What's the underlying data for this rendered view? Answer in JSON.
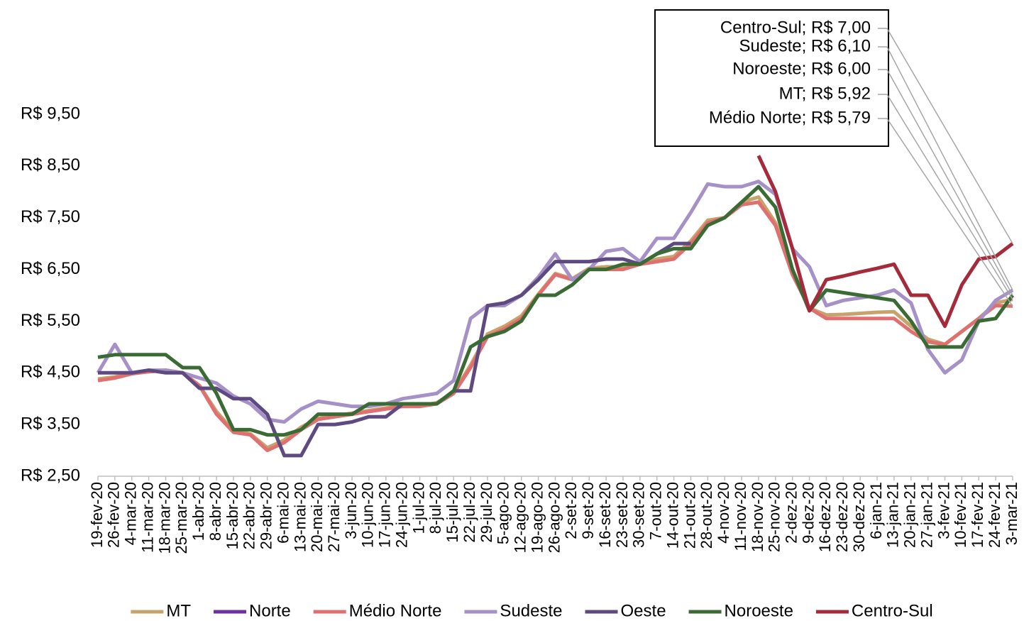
{
  "chart_data": {
    "type": "line",
    "categories": [
      "19-fev-20",
      "26-fev-20",
      "4-mar-20",
      "11-mar-20",
      "18-mar-20",
      "25-mar-20",
      "1-abr-20",
      "8-abr-20",
      "15-abr-20",
      "22-abr-20",
      "29-abr-20",
      "6-mai-20",
      "13-mai-20",
      "20-mai-20",
      "27-mai-20",
      "3-jun-20",
      "10-jun-20",
      "17-jun-20",
      "24-jun-20",
      "1-jul-20",
      "8-jul-20",
      "15-jul-20",
      "22-jul-20",
      "29-jul-20",
      "5-ago-20",
      "12-ago-20",
      "19-ago-20",
      "26-ago-20",
      "2-set-20",
      "9-set-20",
      "16-set-20",
      "23-set-20",
      "30-set-20",
      "7-out-20",
      "14-out-20",
      "21-out-20",
      "28-out-20",
      "4-nov-20",
      "11-nov-20",
      "18-nov-20",
      "25-nov-20",
      "2-dez-20",
      "9-dez-20",
      "16-dez-20",
      "23-dez-20",
      "30-dez-20",
      "6-jan-21",
      "13-jan-21",
      "20-jan-21",
      "27-jan-21",
      "3-fev-21",
      "10-fev-21",
      "17-fev-21",
      "24-fev-21",
      "3-mar-21"
    ],
    "series": [
      {
        "name": "MT",
        "color": "#c8a26b",
        "values": [
          4.38,
          4.42,
          4.5,
          4.52,
          4.55,
          4.5,
          4.25,
          3.75,
          3.38,
          3.32,
          3.05,
          3.2,
          3.45,
          3.62,
          3.67,
          3.72,
          3.77,
          3.82,
          3.86,
          3.86,
          3.92,
          4.12,
          4.65,
          5.25,
          5.4,
          5.6,
          6.02,
          6.42,
          6.32,
          6.52,
          6.55,
          6.55,
          6.6,
          6.7,
          6.75,
          7.05,
          7.45,
          7.5,
          7.8,
          7.9,
          7.4,
          6.5,
          5.75,
          5.62,
          5.63,
          5.65,
          5.67,
          5.68,
          5.4,
          5.15,
          5.05,
          5.3,
          5.55,
          5.85,
          5.92
        ]
      },
      {
        "name": "Norte",
        "color": "#7030a0",
        "values": [
          null,
          null,
          null,
          null,
          null,
          null,
          null,
          null,
          null,
          null,
          null,
          null,
          null,
          null,
          null,
          null,
          null,
          null,
          null,
          null,
          null,
          null,
          null,
          null,
          null,
          null,
          null,
          null,
          null,
          null,
          null,
          null,
          null,
          null,
          null,
          null,
          null,
          null,
          null,
          null,
          null,
          null,
          null,
          null,
          null,
          null,
          null,
          null,
          null,
          null,
          null,
          null,
          null,
          null,
          null
        ]
      },
      {
        "name": "Médio Norte",
        "color": "#e07070",
        "values": [
          4.35,
          4.4,
          4.48,
          4.52,
          4.55,
          4.5,
          4.25,
          3.7,
          3.35,
          3.3,
          3.0,
          3.15,
          3.4,
          3.6,
          3.65,
          3.7,
          3.75,
          3.8,
          3.85,
          3.85,
          3.9,
          4.1,
          4.6,
          5.2,
          5.35,
          5.55,
          6.0,
          6.4,
          6.3,
          6.5,
          6.5,
          6.5,
          6.6,
          6.65,
          6.7,
          7.0,
          7.4,
          7.5,
          7.75,
          7.8,
          7.35,
          6.4,
          5.75,
          5.55,
          5.55,
          5.55,
          5.55,
          5.55,
          5.3,
          5.1,
          5.05,
          5.3,
          5.55,
          5.8,
          5.79
        ]
      },
      {
        "name": "Sudeste",
        "color": "#a690c8",
        "values": [
          4.5,
          5.05,
          4.5,
          4.55,
          4.55,
          4.5,
          4.4,
          4.3,
          4.05,
          3.9,
          3.6,
          3.55,
          3.8,
          3.95,
          3.9,
          3.85,
          3.85,
          3.9,
          4.0,
          4.05,
          4.1,
          4.35,
          5.55,
          5.8,
          5.8,
          6.0,
          6.35,
          6.8,
          6.3,
          6.5,
          6.85,
          6.9,
          6.65,
          7.1,
          7.1,
          7.6,
          8.15,
          8.1,
          8.1,
          8.2,
          7.95,
          6.9,
          6.55,
          5.8,
          5.9,
          5.95,
          6.0,
          6.1,
          5.85,
          4.95,
          4.5,
          4.75,
          5.5,
          5.9,
          6.1
        ]
      },
      {
        "name": "Oeste",
        "color": "#5e4a80",
        "values": [
          4.5,
          4.5,
          4.5,
          4.55,
          4.5,
          4.5,
          4.2,
          4.2,
          4.0,
          4.0,
          3.7,
          2.9,
          2.9,
          3.5,
          3.5,
          3.55,
          3.65,
          3.65,
          3.9,
          3.9,
          3.9,
          4.15,
          4.15,
          5.8,
          5.85,
          6.0,
          6.3,
          6.65,
          6.65,
          6.65,
          6.7,
          6.7,
          6.6,
          6.8,
          7.0,
          7.0,
          null,
          null,
          null,
          null,
          null,
          null,
          null,
          null,
          null,
          null,
          null,
          null,
          null,
          null,
          null,
          null,
          null,
          null,
          null
        ]
      },
      {
        "name": "Noroeste",
        "color": "#3b6b35",
        "values": [
          4.8,
          4.85,
          4.85,
          4.85,
          4.85,
          4.6,
          4.6,
          4.1,
          3.4,
          3.4,
          3.3,
          3.3,
          3.4,
          3.7,
          3.7,
          3.7,
          3.9,
          3.9,
          3.9,
          3.9,
          3.9,
          4.15,
          5.0,
          5.2,
          5.3,
          5.5,
          6.0,
          6.0,
          6.2,
          6.5,
          6.5,
          6.6,
          6.6,
          6.8,
          6.9,
          6.9,
          7.35,
          7.5,
          7.8,
          8.1,
          7.7,
          6.5,
          5.7,
          6.1,
          6.05,
          6.0,
          5.95,
          5.9,
          5.5,
          5.0,
          5.0,
          5.0,
          5.5,
          5.55,
          6.0
        ]
      },
      {
        "name": "Centro-Sul",
        "color": "#a52a3a",
        "values": [
          null,
          null,
          null,
          null,
          null,
          null,
          null,
          null,
          null,
          null,
          null,
          null,
          null,
          null,
          null,
          null,
          null,
          null,
          null,
          null,
          null,
          null,
          null,
          null,
          null,
          null,
          null,
          null,
          null,
          null,
          null,
          null,
          null,
          null,
          null,
          null,
          null,
          null,
          null,
          8.7,
          8.0,
          6.9,
          5.7,
          6.3,
          6.37,
          6.45,
          6.52,
          6.6,
          6.0,
          6.0,
          5.4,
          6.2,
          6.7,
          6.75,
          7.0
        ]
      }
    ],
    "ylim": [
      2.5,
      9.5
    ],
    "yticks": [
      {
        "value": 2.5,
        "label": "R$ 2,50"
      },
      {
        "value": 3.5,
        "label": "R$ 3,50"
      },
      {
        "value": 4.5,
        "label": "R$ 4,50"
      },
      {
        "value": 5.5,
        "label": "R$ 5,50"
      },
      {
        "value": 6.5,
        "label": "R$ 6,50"
      },
      {
        "value": 7.5,
        "label": "R$ 7,50"
      },
      {
        "value": 8.5,
        "label": "R$ 8,50"
      },
      {
        "value": 9.5,
        "label": "R$ 9,50"
      }
    ],
    "annotations": [
      "Centro-Sul; R$ 7,00",
      "Sudeste; R$ 6,10",
      "Noroeste; R$ 6,00",
      "MT; R$ 5,92",
      "Médio Norte; R$ 5,79"
    ],
    "grid": false,
    "legend": "bottom"
  }
}
